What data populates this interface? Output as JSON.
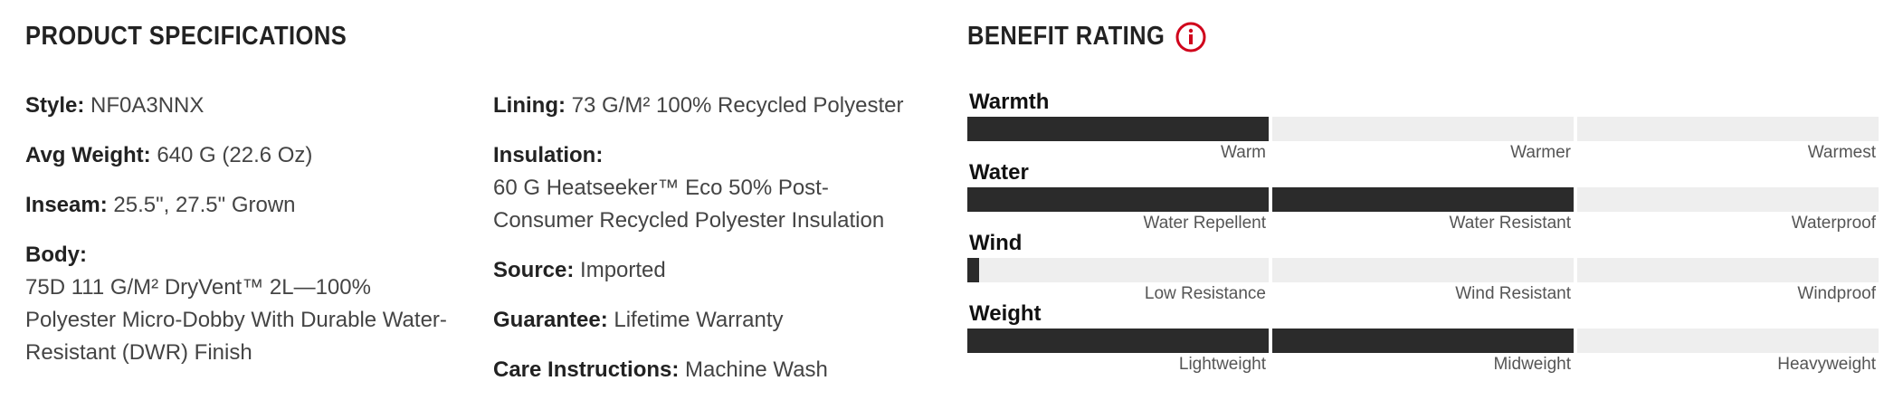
{
  "specs": {
    "title": "PRODUCT SPECIFICATIONS",
    "columns": [
      [
        {
          "label": "Style:",
          "value": "NF0A3NNX"
        },
        {
          "label": "Avg Weight:",
          "value": "640 G (22.6 Oz)"
        },
        {
          "label": "Inseam:",
          "value": "25.5\", 27.5\" Grown"
        },
        {
          "label": "Body:",
          "lines": [
            "75D 111 G/M² DryVent™ 2L—100%",
            "Polyester Micro-Dobby With Durable Water-",
            "Resistant (DWR) Finish"
          ]
        }
      ],
      [
        {
          "label": "Lining:",
          "value": "73 G/M² 100% Recycled Polyester"
        },
        {
          "label": "Insulation:",
          "lines": [
            "60 G Heatseeker™ Eco 50% Post-",
            "Consumer Recycled Polyester Insulation"
          ]
        },
        {
          "label": "Source:",
          "value": "Imported"
        },
        {
          "label": "Guarantee:",
          "value": "Lifetime Warranty"
        },
        {
          "label": "Care Instructions:",
          "value": "Machine Wash"
        }
      ]
    ]
  },
  "benefits": {
    "title": "BENEFIT RATING",
    "ratings": [
      {
        "name": "Warmth",
        "levels": [
          "Warm",
          "Warmer",
          "Warmest"
        ],
        "rating": 1
      },
      {
        "name": "Water",
        "levels": [
          "Water Repellent",
          "Water Resistant",
          "Waterproof"
        ],
        "rating": 2
      },
      {
        "name": "Wind",
        "levels": [
          "Low Resistance",
          "Wind Resistant",
          "Windproof"
        ],
        "rating": 0.04
      },
      {
        "name": "Weight",
        "levels": [
          "Lightweight",
          "Midweight",
          "Heavyweight"
        ],
        "rating": 2
      }
    ]
  }
}
